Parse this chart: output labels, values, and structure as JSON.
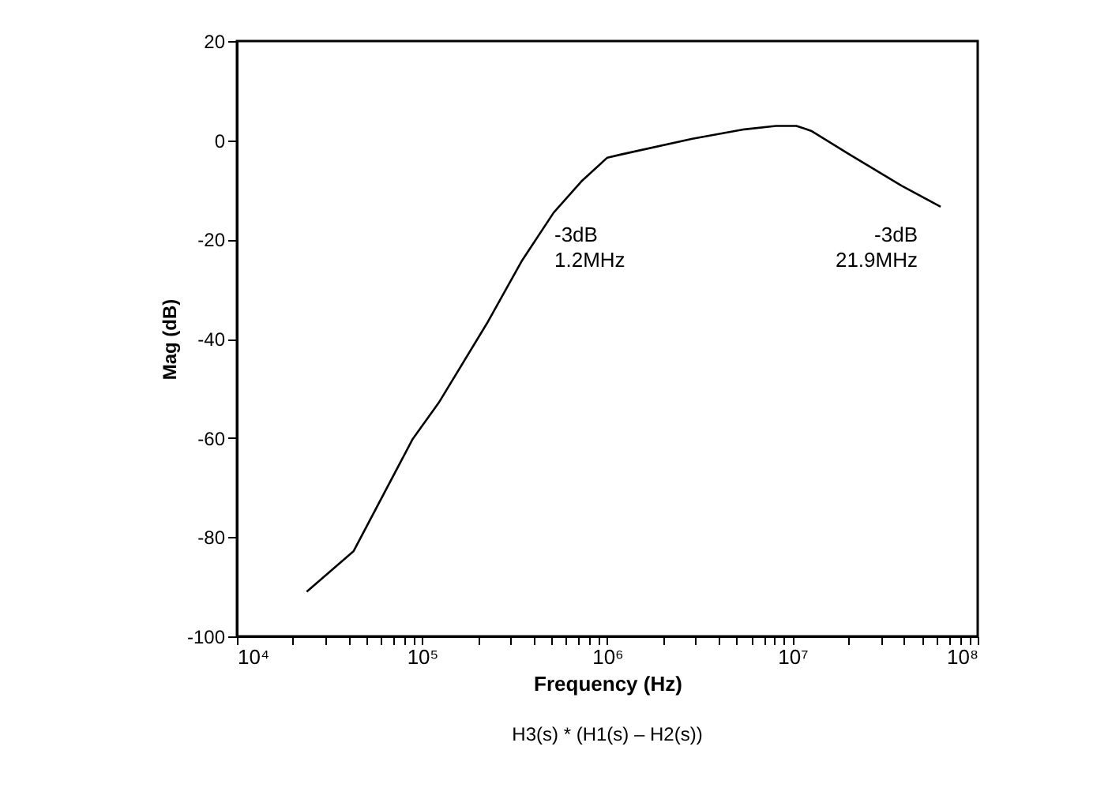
{
  "chart_data": {
    "type": "line",
    "xlabel": "Frequency (Hz)",
    "ylabel": "Mag (dB)",
    "x": [
      23800,
      42700,
      89000,
      123000,
      224000,
      347000,
      513000,
      724000,
      1000000,
      1175000,
      2880000,
      5500000,
      8130000,
      10500000,
      12600000,
      20400000,
      38900000,
      63100000
    ],
    "series": [
      {
        "color": "#000000",
        "values": [
          -91,
          -82.8,
          -60.2,
          -52.9,
          -36.9,
          -24.2,
          -14.6,
          -8.3,
          -3.5,
          -2.9,
          0.3,
          2.2,
          2.9,
          2.9,
          1.9,
          -2.9,
          -9.2,
          -13.4
        ]
      }
    ],
    "log": "x",
    "grid": false,
    "marker": "none",
    "line_style": "solid",
    "xlim": [
      10000,
      100000000
    ],
    "xticks": [
      {
        "value": 10000,
        "label": "10⁴"
      },
      {
        "value": 20000,
        "label": null
      },
      {
        "value": 30000,
        "label": null
      },
      {
        "value": 40000,
        "label": null
      },
      {
        "value": 50000,
        "label": null
      },
      {
        "value": 60000,
        "label": null
      },
      {
        "value": 70000,
        "label": null
      },
      {
        "value": 80000,
        "label": null
      },
      {
        "value": 90000,
        "label": null
      },
      {
        "value": 100000,
        "label": "10⁵"
      },
      {
        "value": 200000,
        "label": null
      },
      {
        "value": 300000,
        "label": null
      },
      {
        "value": 400000,
        "label": null
      },
      {
        "value": 500000,
        "label": null
      },
      {
        "value": 600000,
        "label": null
      },
      {
        "value": 700000,
        "label": null
      },
      {
        "value": 800000,
        "label": null
      },
      {
        "value": 900000,
        "label": null
      },
      {
        "value": 1000000,
        "label": "10⁶"
      },
      {
        "value": 2000000,
        "label": null
      },
      {
        "value": 3000000,
        "label": null
      },
      {
        "value": 4000000,
        "label": null
      },
      {
        "value": 5000000,
        "label": null
      },
      {
        "value": 6000000,
        "label": null
      },
      {
        "value": 7000000,
        "label": null
      },
      {
        "value": 8000000,
        "label": null
      },
      {
        "value": 9000000,
        "label": null
      },
      {
        "value": 10000000,
        "label": "10⁷"
      },
      {
        "value": 20000000,
        "label": null
      },
      {
        "value": 30000000,
        "label": null
      },
      {
        "value": 40000000,
        "label": null
      },
      {
        "value": 50000000,
        "label": null
      },
      {
        "value": 60000000,
        "label": null
      },
      {
        "value": 70000000,
        "label": null
      },
      {
        "value": 80000000,
        "label": null
      },
      {
        "value": 90000000,
        "label": null
      },
      {
        "value": 100000000,
        "label": "10⁸"
      }
    ],
    "ylim": [
      -100,
      20
    ],
    "yticks": [
      -100,
      -80,
      -60,
      -40,
      -20,
      0,
      20
    ],
    "annotations": [
      "-3dB\n1.2MHz",
      "-3dB\n21.9MHz",
      "H3(s) * (H1(s) – H2(s))"
    ]
  }
}
